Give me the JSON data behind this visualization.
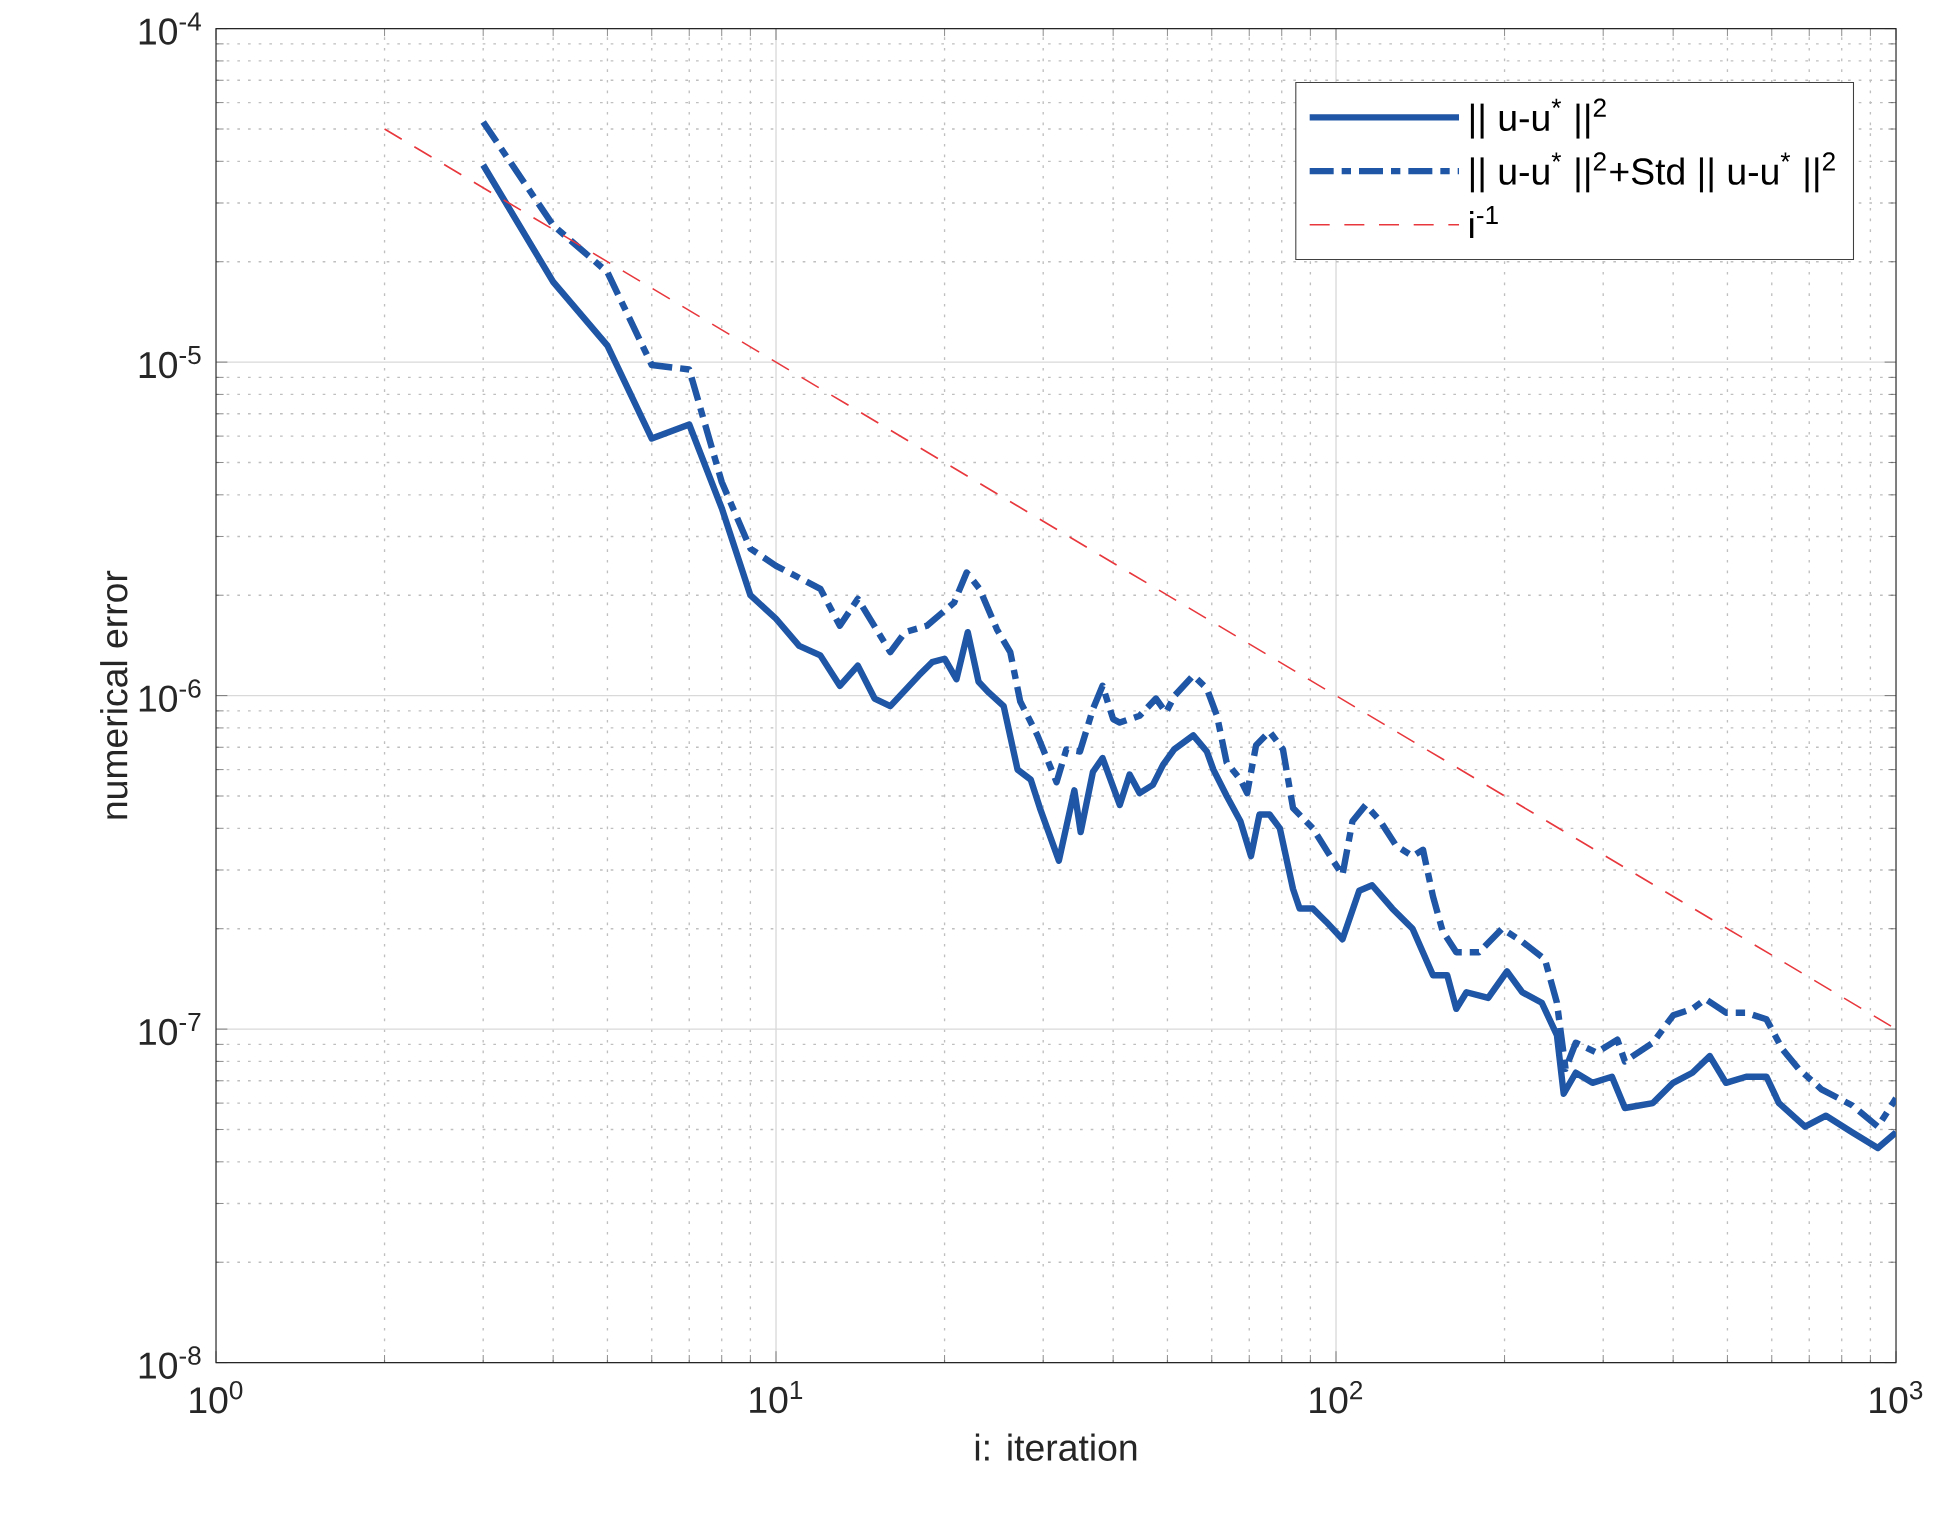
{
  "chart_data": {
    "type": "line",
    "xlabel": "i: iteration",
    "ylabel": "numerical error",
    "log": "xy",
    "grid": true,
    "legend": "top right",
    "xlim": [
      1,
      1000
    ],
    "ylim": [
      1e-08,
      0.0001
    ],
    "xticks": [
      {
        "value": 1,
        "label": "10$^{0}$"
      },
      {
        "value": 10,
        "label": "10$^{1}$"
      },
      {
        "value": 100,
        "label": "10$^{2}$"
      },
      {
        "value": 1000,
        "label": "10$^{3}$"
      }
    ],
    "yticks": [
      {
        "value": 1e-08,
        "label": "10$^{-8}$"
      },
      {
        "value": 1e-07,
        "label": "10$^{-7}$"
      },
      {
        "value": 1e-06,
        "label": "10$^{-6}$"
      },
      {
        "value": 1e-05,
        "label": "10$^{-5}$"
      },
      {
        "value": 0.0001,
        "label": "10$^{-4}$"
      }
    ],
    "series": [
      {
        "name": "|| u-u$^{*}$ ||$^{2}$",
        "color": "#1f56a5",
        "line_style": "solid",
        "x": [
          3,
          4,
          5,
          6,
          7,
          8,
          9,
          10,
          11,
          12,
          13,
          14,
          15,
          16,
          18,
          19,
          20,
          21,
          22,
          23,
          24,
          25.5,
          27,
          28.5,
          29.6,
          32,
          34.1,
          35,
          36.8,
          38.3,
          41.1,
          42.8,
          44.6,
          47.1,
          49.1,
          51.4,
          55.6,
          58.8,
          60.4,
          63.8,
          67.5,
          70.5,
          73,
          76.1,
          79.4,
          83.8,
          86.1,
          90.9,
          96,
          102.7,
          110,
          116,
          126,
          137,
          149,
          158,
          164,
          171,
          187,
          202,
          215,
          233,
          248,
          255,
          268,
          287,
          311,
          328,
          368,
          400,
          433,
          465,
          497,
          540,
          587,
          618,
          688,
          750,
          836,
          928,
          1000
        ],
        "values": [
          3.9e-05,
          1.74e-05,
          1.12e-05,
          5.9e-06,
          6.5e-06,
          3.65e-06,
          2e-06,
          1.7e-06,
          1.41e-06,
          1.32e-06,
          1.07e-06,
          1.23e-06,
          9.8e-07,
          9.3e-07,
          1.15e-06,
          1.26e-06,
          1.29e-06,
          1.12e-06,
          1.55e-06,
          1.1e-06,
          1.02e-06,
          9.3e-07,
          6e-07,
          5.6e-07,
          4.6e-07,
          3.2e-07,
          5.2e-07,
          3.9e-07,
          5.9e-07,
          6.5e-07,
          4.7e-07,
          5.8e-07,
          5.1e-07,
          5.4e-07,
          6.2e-07,
          6.9e-07,
          7.6e-07,
          6.8e-07,
          6e-07,
          5e-07,
          4.2e-07,
          3.3e-07,
          4.4e-07,
          4.4e-07,
          4e-07,
          2.63e-07,
          2.3e-07,
          2.3e-07,
          2.1e-07,
          1.86e-07,
          2.6e-07,
          2.7e-07,
          2.3e-07,
          2e-07,
          1.45e-07,
          1.45e-07,
          1.15e-07,
          1.29e-07,
          1.24e-07,
          1.49e-07,
          1.29e-07,
          1.2e-07,
          9.6e-08,
          6.4e-08,
          7.4e-08,
          6.9e-08,
          7.2e-08,
          5.8e-08,
          6e-08,
          6.9e-08,
          7.4e-08,
          8.3e-08,
          6.9e-08,
          7.2e-08,
          7.2e-08,
          6e-08,
          5.1e-08,
          5.5e-08,
          4.9e-08,
          4.4e-08,
          4.9e-08
        ]
      },
      {
        "name": "|| u-u$^{*}$ ||$^{2}$+Std || u-u$^{*}$ ||$^{2}$",
        "color": "#1f56a5",
        "line_style": "dashdot",
        "x": [
          3,
          4,
          5,
          6,
          7,
          8,
          9,
          10,
          12,
          13,
          14,
          16,
          17,
          18.6,
          20.8,
          21.9,
          23.1,
          24.8,
          26.2,
          27.3,
          29.3,
          31.7,
          33,
          34.9,
          36.8,
          38.3,
          40,
          41.1,
          44.6,
          47.7,
          49.7,
          51.5,
          55.6,
          58.8,
          61.3,
          63.8,
          67.5,
          69.4,
          72,
          76.1,
          80.4,
          83.8,
          90.9,
          98.8,
          102.7,
          107,
          113,
          120,
          128,
          137,
          143,
          149,
          155,
          164,
          180,
          198,
          215,
          236,
          248,
          257,
          268,
          292,
          318,
          328,
          368,
          400,
          433,
          457,
          497,
          540,
          587,
          627,
          670,
          736,
          836,
          928,
          1000
        ],
        "values": [
          5.25e-05,
          2.57e-05,
          1.86e-05,
          9.8e-06,
          9.5e-06,
          4.37e-06,
          2.76e-06,
          2.45e-06,
          2.09e-06,
          1.62e-06,
          1.95e-06,
          1.35e-06,
          1.55e-06,
          1.62e-06,
          1.9e-06,
          2.34e-06,
          2.09e-06,
          1.58e-06,
          1.35e-06,
          9.6e-07,
          7.6e-07,
          5.5e-07,
          6.9e-07,
          6.8e-07,
          9.1e-07,
          1.07e-06,
          8.5e-07,
          8.3e-07,
          8.7e-07,
          9.8e-07,
          8.9e-07,
          1e-06,
          1.15e-06,
          1.05e-06,
          8.7e-07,
          6.3e-07,
          5.6e-07,
          5.1e-07,
          7.1e-07,
          7.8e-07,
          6.9e-07,
          4.6e-07,
          4e-07,
          3.2e-07,
          2.9e-07,
          4.2e-07,
          4.7e-07,
          4.2e-07,
          3.55e-07,
          3.3e-07,
          3.45e-07,
          2.5e-07,
          1.97e-07,
          1.7e-07,
          1.7e-07,
          2e-07,
          1.83e-07,
          1.62e-07,
          1.2e-07,
          7.6e-08,
          9.1e-08,
          8.5e-08,
          9.3e-08,
          8e-08,
          9.1e-08,
          1.1e-07,
          1.15e-07,
          1.23e-07,
          1.12e-07,
          1.12e-07,
          1.07e-07,
          8.7e-08,
          7.6e-08,
          6.6e-08,
          5.9e-08,
          5.1e-08,
          6.2e-08
        ]
      },
      {
        "name": "i$^{-1}$",
        "color": "#e8383d",
        "line_style": "dashed",
        "x": [
          2,
          1000
        ],
        "values": [
          5e-05,
          1e-07
        ]
      }
    ]
  }
}
